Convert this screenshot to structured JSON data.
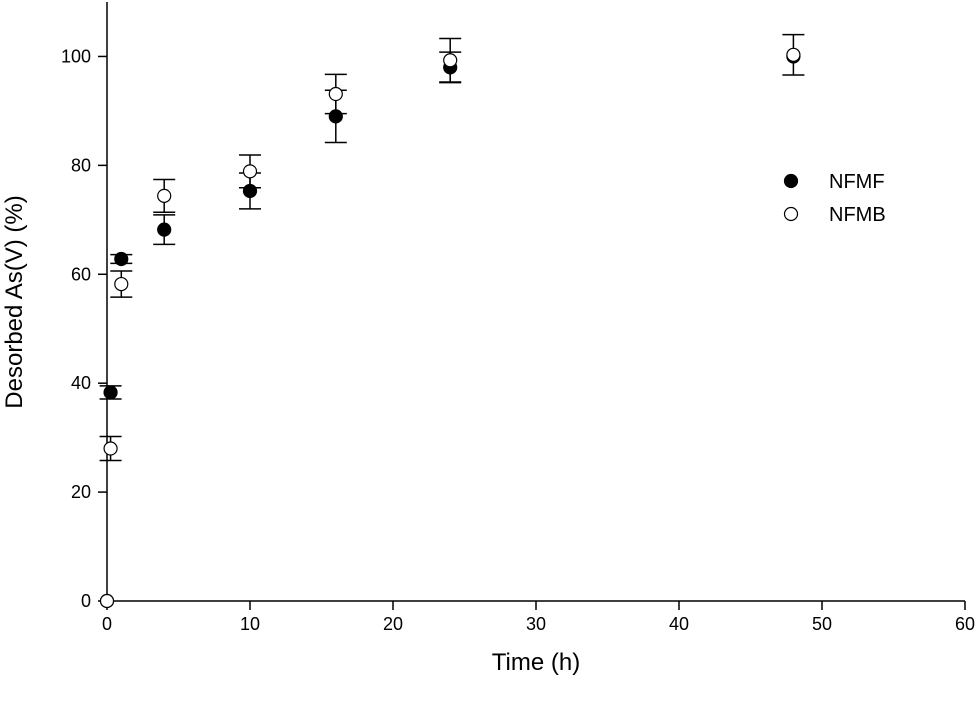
{
  "chart_data": {
    "type": "scatter",
    "xlabel": "Time (h)",
    "ylabel": "Desorbed As(V) (%)",
    "xlim": [
      0,
      60
    ],
    "ylim": [
      0,
      110
    ],
    "xticks": [
      0,
      10,
      20,
      30,
      40,
      50,
      60
    ],
    "yticks": [
      0,
      20,
      40,
      60,
      80,
      100
    ],
    "grid": false,
    "legend_position": "right",
    "series": [
      {
        "name": "NFMF",
        "marker": "filled-circle",
        "color": "#000000",
        "points": [
          {
            "x": 0,
            "y": 0,
            "err": 0
          },
          {
            "x": 0.25,
            "y": 38.3,
            "err": 1.2
          },
          {
            "x": 1,
            "y": 62.8,
            "err": 0.8
          },
          {
            "x": 4,
            "y": 68.2,
            "err": 2.7
          },
          {
            "x": 10,
            "y": 75.3,
            "err": 3.3
          },
          {
            "x": 16,
            "y": 89.0,
            "err": 4.8
          },
          {
            "x": 24,
            "y": 98.0,
            "err": 2.8
          },
          {
            "x": 48,
            "y": 100.0,
            "err": 0
          }
        ]
      },
      {
        "name": "NFMB",
        "marker": "open-circle",
        "color": "#000000",
        "points": [
          {
            "x": 0,
            "y": 0,
            "err": 0
          },
          {
            "x": 0.25,
            "y": 28.0,
            "err": 2.2
          },
          {
            "x": 1,
            "y": 58.2,
            "err": 2.4
          },
          {
            "x": 4,
            "y": 74.4,
            "err": 3.0
          },
          {
            "x": 10,
            "y": 78.9,
            "err": 3.0
          },
          {
            "x": 16,
            "y": 93.1,
            "err": 3.6
          },
          {
            "x": 24,
            "y": 99.3,
            "err": 4.0
          },
          {
            "x": 48,
            "y": 100.3,
            "err": 3.7
          }
        ]
      }
    ]
  }
}
